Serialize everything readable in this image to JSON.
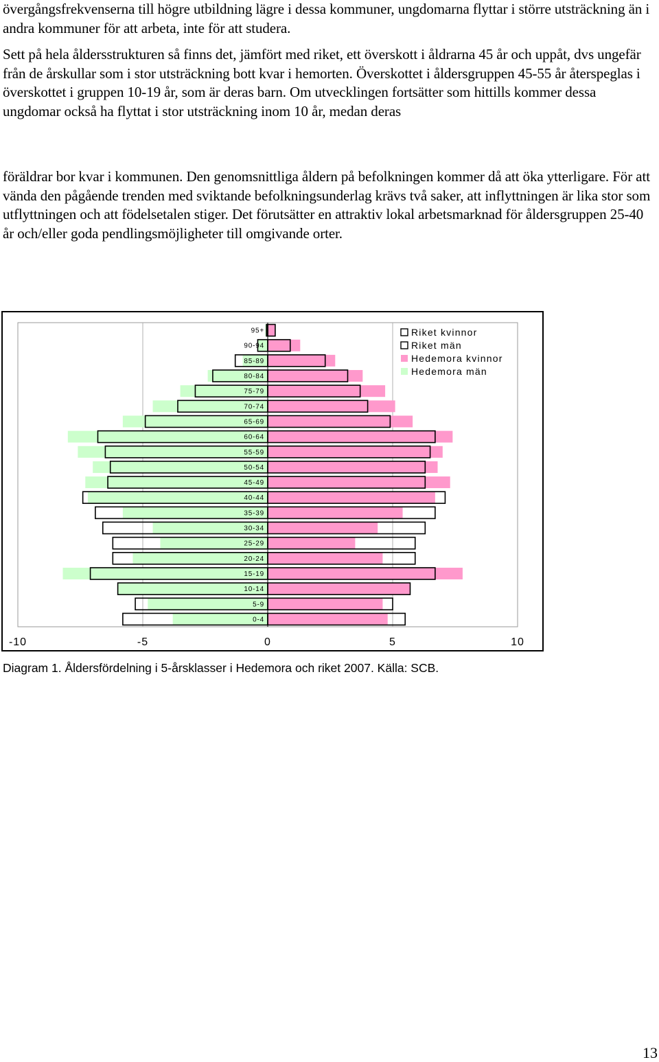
{
  "document": {
    "paragraphs": [
      "övergångsfrekvenserna till högre utbildning lägre i dessa kommuner, ungdomarna flyttar i större utsträckning än i andra kommuner för att arbeta, inte för att studera.",
      "Sett på hela åldersstrukturen så finns det, jämfört med riket, ett överskott i åldrarna 45 år och uppåt, dvs ungefär från de årskullar som i stor utsträckning bott kvar i hemorten. Överskottet i åldersgruppen 45-55 år återspeglas i överskottet i gruppen 10-19 år, som är deras barn. Om utvecklingen fortsätter som hittills kommer dessa ungdomar också ha flyttat i stor utsträckning inom 10 år, medan deras",
      "föräldrar bor kvar i kommunen. Den genomsnittliga åldern på befolkningen kommer då att öka ytterligare. För att vända den pågående trenden med sviktande befolkningsunderlag krävs två saker, att inflyttningen är lika stor som utflyttningen och att födelsetalen stiger. Det förutsätter en attraktiv lokal arbetsmarknad för åldersgruppen 25-40 år och/eller goda pendlingsmöjligheter till omgivande orter."
    ],
    "caption": "Diagram 1. Åldersfördelning i 5-årsklasser i Hedemora och riket 2007. Källa: SCB.",
    "page_number": "13"
  },
  "chart_data": {
    "type": "bar",
    "orientation": "horizontal",
    "subtype": "population-pyramid",
    "title": "",
    "xlabel": "",
    "ylabel": "",
    "xlim": [
      -10,
      10
    ],
    "x_ticks": [
      -10,
      -5,
      0,
      5,
      10
    ],
    "x_tick_labels": [
      "-10",
      "-5",
      "0",
      "5",
      "10"
    ],
    "grid": true,
    "legend_position": "top-right",
    "categories": [
      "95+",
      "90-94",
      "85-89",
      "80-84",
      "75-79",
      "70-74",
      "65-69",
      "60-64",
      "55-59",
      "50-54",
      "45-49",
      "40-44",
      "35-39",
      "30-34",
      "25-29",
      "20-24",
      "15-19",
      "10-14",
      "5-9",
      "0-4"
    ],
    "series": [
      {
        "name": "Hedemora män",
        "side": "left",
        "color": "#ccffcc",
        "values": [
          0.1,
          0.4,
          1.0,
          2.4,
          3.5,
          4.6,
          5.8,
          8.0,
          7.6,
          7.0,
          7.3,
          7.2,
          5.8,
          4.6,
          4.3,
          5.4,
          8.2,
          6.0,
          4.8,
          3.8
        ]
      },
      {
        "name": "Riket män",
        "side": "left",
        "color": "#ffffff",
        "values": [
          0.05,
          0.4,
          1.3,
          2.2,
          2.9,
          3.6,
          4.9,
          6.8,
          6.5,
          6.3,
          6.4,
          7.4,
          6.9,
          6.6,
          6.2,
          6.2,
          7.1,
          6.0,
          5.3,
          5.8
        ]
      },
      {
        "name": "Hedemora kvinnor",
        "side": "right",
        "color": "#ff99cc",
        "values": [
          0.3,
          1.3,
          2.7,
          3.8,
          4.7,
          5.1,
          5.8,
          7.4,
          7.0,
          6.8,
          7.3,
          6.7,
          5.4,
          4.4,
          3.5,
          4.6,
          7.8,
          5.7,
          4.6,
          4.8
        ]
      },
      {
        "name": "Riket kvinnor",
        "side": "right",
        "color": "#ffffff",
        "values": [
          0.3,
          0.9,
          2.3,
          3.2,
          3.7,
          4.0,
          4.9,
          6.7,
          6.5,
          6.3,
          6.3,
          7.1,
          6.7,
          6.3,
          5.9,
          5.9,
          6.7,
          5.7,
          5.0,
          5.5
        ]
      }
    ],
    "legend": [
      {
        "label": "Riket kvinnor",
        "swatch": "#ffffff"
      },
      {
        "label": "Riket män",
        "swatch": "#ffffff"
      },
      {
        "label": "Hedemora kvinnor",
        "swatch": "#ff99cc"
      },
      {
        "label": "Hedemora män",
        "swatch": "#ccffcc"
      }
    ]
  }
}
